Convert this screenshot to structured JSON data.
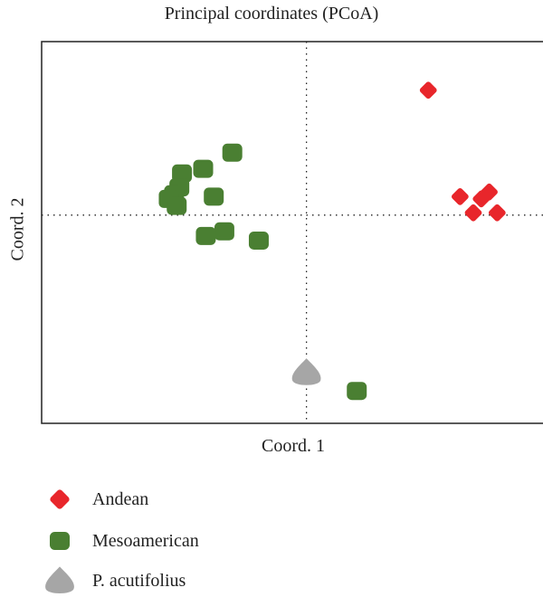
{
  "chart_data": {
    "type": "scatter",
    "title": "Principal coordinates (PCoA)",
    "xlabel": "Coord. 1",
    "ylabel": "Coord. 2",
    "xlim": [
      -1.0,
      0.9
    ],
    "ylim": [
      -0.9,
      0.75
    ],
    "grid": false,
    "reference_lines": {
      "x": 0,
      "y": 0
    },
    "legend_position": "bottom",
    "series": [
      {
        "name": "Andean",
        "color": "#e8262b",
        "marker": "diamond",
        "points": [
          [
            0.46,
            0.54
          ],
          [
            0.58,
            0.08
          ],
          [
            0.63,
            0.01
          ],
          [
            0.66,
            0.07
          ],
          [
            0.69,
            0.1
          ],
          [
            0.72,
            0.01
          ]
        ]
      },
      {
        "name": "Mesoamerican",
        "color": "#4a7f32",
        "marker": "rounded-square",
        "points": [
          [
            -0.28,
            0.27
          ],
          [
            -0.39,
            0.2
          ],
          [
            -0.47,
            0.18
          ],
          [
            -0.48,
            0.12
          ],
          [
            -0.5,
            0.09
          ],
          [
            -0.52,
            0.07
          ],
          [
            -0.49,
            0.04
          ],
          [
            -0.35,
            0.08
          ],
          [
            -0.31,
            -0.07
          ],
          [
            -0.38,
            -0.09
          ],
          [
            -0.18,
            -0.11
          ],
          [
            0.19,
            -0.76
          ]
        ]
      },
      {
        "name": "P. acutifolius",
        "color": "#a6a6a6",
        "marker": "drop",
        "points": [
          [
            0.0,
            -0.68
          ]
        ]
      }
    ]
  }
}
